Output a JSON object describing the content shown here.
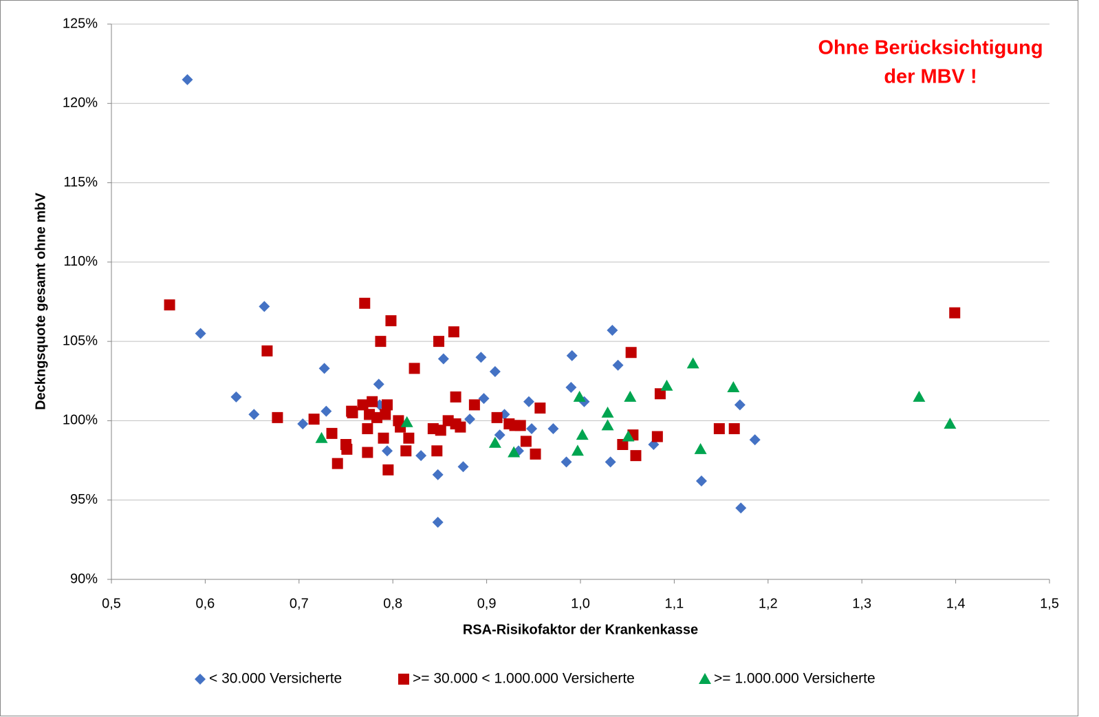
{
  "chart_data": {
    "type": "scatter",
    "ylabel": "Deckngsquote gesamt ohne mbV",
    "xlabel": "RSA-Risikofaktor der Krankenkasse",
    "annotations": [
      "Ohne Berücksichtigung",
      "der MBV !"
    ],
    "annotation_color": "#ff0000",
    "grid": true,
    "legend": "bottom",
    "xlim": [
      0.5,
      1.5
    ],
    "xticks": [
      {
        "value": 0.5,
        "label": "0,5"
      },
      {
        "value": 0.6,
        "label": "0,6"
      },
      {
        "value": 0.7,
        "label": "0,7"
      },
      {
        "value": 0.8,
        "label": "0,8"
      },
      {
        "value": 0.9,
        "label": "0,9"
      },
      {
        "value": 1.0,
        "label": "1,0"
      },
      {
        "value": 1.1,
        "label": "1,1"
      },
      {
        "value": 1.2,
        "label": "1,2"
      },
      {
        "value": 1.3,
        "label": "1,3"
      },
      {
        "value": 1.4,
        "label": "1,4"
      },
      {
        "value": 1.5,
        "label": "1,5"
      }
    ],
    "ylim": [
      90,
      125
    ],
    "yticks": [
      {
        "value": 90,
        "label": "90%"
      },
      {
        "value": 95,
        "label": "95%"
      },
      {
        "value": 100,
        "label": "100%"
      },
      {
        "value": 105,
        "label": "105%"
      },
      {
        "value": 110,
        "label": "110%"
      },
      {
        "value": 115,
        "label": "115%"
      },
      {
        "value": 120,
        "label": "120%"
      },
      {
        "value": 125,
        "label": "125%"
      }
    ],
    "series": [
      {
        "name": "< 30.000 Versicherte",
        "color": "#4472c4",
        "marker": "diamond",
        "x": [
          0.581,
          0.595,
          0.663,
          0.633,
          0.652,
          0.704,
          0.727,
          0.729,
          0.785,
          0.786,
          0.794,
          0.83,
          0.848,
          0.848,
          0.854,
          0.875,
          0.882,
          0.894,
          0.897,
          0.909,
          0.914,
          0.919,
          0.934,
          0.945,
          0.948,
          0.971,
          0.985,
          0.99,
          0.991,
          1.004,
          1.032,
          1.034,
          1.04,
          1.078,
          1.129,
          1.17,
          1.171,
          1.186
        ],
        "values": [
          121.5,
          105.5,
          107.2,
          101.5,
          100.4,
          99.8,
          103.3,
          100.6,
          102.3,
          101.0,
          98.1,
          97.8,
          96.6,
          93.6,
          103.9,
          97.1,
          100.1,
          104.0,
          101.4,
          103.1,
          99.1,
          100.4,
          98.1,
          101.2,
          99.5,
          99.5,
          97.4,
          102.1,
          104.1,
          101.2,
          97.4,
          105.7,
          103.5,
          98.5,
          96.2,
          101.0,
          94.5,
          98.8
        ]
      },
      {
        "name": ">= 30.000 < 1.000.000 Versicherte",
        "color": "#c00000",
        "marker": "square",
        "x": [
          0.562,
          0.666,
          0.677,
          0.716,
          0.735,
          0.741,
          0.75,
          0.751,
          0.756,
          0.757,
          0.768,
          0.77,
          0.773,
          0.773,
          0.775,
          0.778,
          0.783,
          0.787,
          0.79,
          0.792,
          0.794,
          0.795,
          0.798,
          0.806,
          0.808,
          0.814,
          0.817,
          0.823,
          0.843,
          0.847,
          0.849,
          0.851,
          0.859,
          0.865,
          0.867,
          0.867,
          0.872,
          0.887,
          0.911,
          0.924,
          0.93,
          0.936,
          0.942,
          0.952,
          0.957,
          1.045,
          1.054,
          1.056,
          1.059,
          1.082,
          1.085,
          1.148,
          1.164,
          1.399
        ],
        "values": [
          107.3,
          104.4,
          100.2,
          100.1,
          99.2,
          97.3,
          98.5,
          98.2,
          100.6,
          100.5,
          101.0,
          107.4,
          98.0,
          99.5,
          100.4,
          101.2,
          100.2,
          105.0,
          98.9,
          100.4,
          101.0,
          96.9,
          106.3,
          100.0,
          99.6,
          98.1,
          98.9,
          103.3,
          99.5,
          98.1,
          105.0,
          99.4,
          100.0,
          105.6,
          101.5,
          99.8,
          99.6,
          101.0,
          100.2,
          99.8,
          99.7,
          99.7,
          98.7,
          97.9,
          100.8,
          98.5,
          104.3,
          99.1,
          97.8,
          99.0,
          101.7,
          99.5,
          99.5,
          106.8
        ]
      },
      {
        "name": ">= 1.000.000 Versicherte",
        "color": "#00a550",
        "marker": "triangle",
        "x": [
          0.724,
          0.815,
          0.909,
          0.929,
          0.997,
          0.999,
          1.002,
          1.029,
          1.029,
          1.051,
          1.053,
          1.092,
          1.12,
          1.128,
          1.163,
          1.361,
          1.394
        ],
        "values": [
          98.9,
          99.9,
          98.6,
          98.0,
          98.1,
          101.5,
          99.1,
          100.5,
          99.7,
          99.0,
          101.5,
          102.2,
          103.6,
          98.2,
          102.1,
          101.5,
          99.8
        ]
      }
    ]
  }
}
